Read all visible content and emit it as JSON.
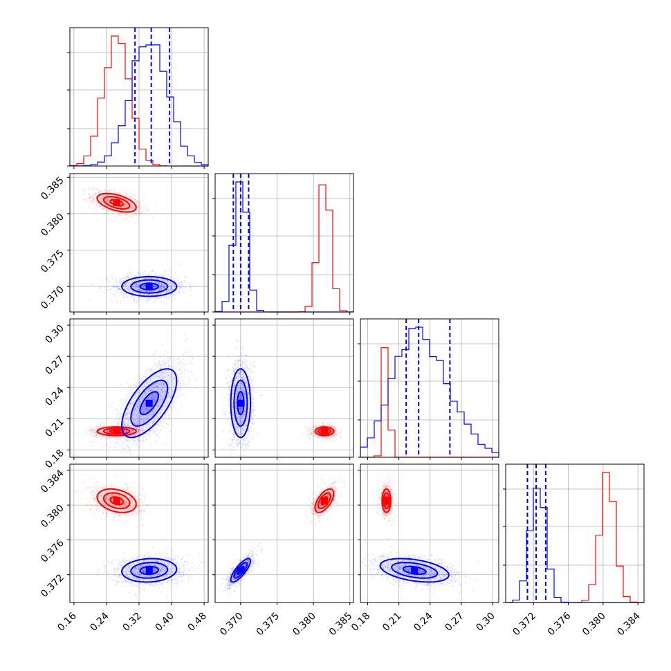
{
  "colors": {
    "series_a": "#ff0000",
    "series_b": "#0000ff",
    "grid": "#b0b0b0"
  },
  "chart_data": {
    "type": "scatter",
    "subtype": "corner-plot",
    "grid": true,
    "parameters": [
      {
        "range": [
          0.15,
          0.49
        ],
        "ticks": [
          "0.16",
          "0.24",
          "0.32",
          "0.40",
          "0.48"
        ]
      },
      {
        "range": [
          0.3665,
          0.3855
        ],
        "ticks": [
          "0.370",
          "0.375",
          "0.380",
          "0.385"
        ]
      },
      {
        "range": [
          0.173,
          0.306
        ],
        "ticks": [
          "0.18",
          "0.21",
          "0.24",
          "0.27",
          "0.30"
        ]
      },
      {
        "range": [
          0.3688,
          0.3847
        ],
        "ticks": [
          "0.372",
          "0.376",
          "0.380",
          "0.384"
        ]
      }
    ],
    "series": [
      {
        "color": "red",
        "mean": [
          0.265,
          0.3815,
          0.198,
          0.3805
        ],
        "sd": [
          0.032,
          0.00085,
          0.0028,
          0.0009
        ],
        "corr": [
          [
            0,
            1,
            -0.5
          ],
          [
            0,
            3,
            -0.3
          ],
          [
            1,
            3,
            0.6
          ]
        ]
      },
      {
        "color": "blue",
        "mean": [
          0.345,
          0.37,
          0.225,
          0.3725
        ],
        "sd": [
          0.045,
          0.0009,
          0.022,
          0.0009
        ],
        "corr": [
          [
            0,
            2,
            0.65
          ],
          [
            1,
            3,
            0.8
          ],
          [
            2,
            3,
            -0.4
          ],
          [
            0,
            3,
            0.1
          ]
        ]
      }
    ],
    "quantile_lines": [
      [
        0.31,
        0.35,
        0.395
      ],
      [
        0.369,
        0.37,
        0.3711
      ],
      [
        0.217,
        0.229,
        0.259
      ],
      [
        0.3713,
        0.3723,
        0.3734
      ]
    ],
    "tick_labels": {
      "row1_y": [
        "0.385",
        "0.380",
        "0.375",
        "0.370"
      ],
      "row2_y": [
        "0.30",
        "0.27",
        "0.24",
        "0.21",
        "0.18"
      ],
      "row3_y": [
        "0.384",
        "0.380",
        "0.376",
        "0.372"
      ],
      "col0_x": [
        "0.16",
        "0.24",
        "0.32",
        "0.40",
        "0.48"
      ],
      "col1_x": [
        "0.370",
        "0.375",
        "0.380",
        "0.385"
      ],
      "col2_x": [
        "0.18",
        "0.21",
        "0.24",
        "0.27",
        "0.30"
      ],
      "col3_x": [
        "0.372",
        "0.376",
        "0.380",
        "0.384"
      ]
    }
  }
}
